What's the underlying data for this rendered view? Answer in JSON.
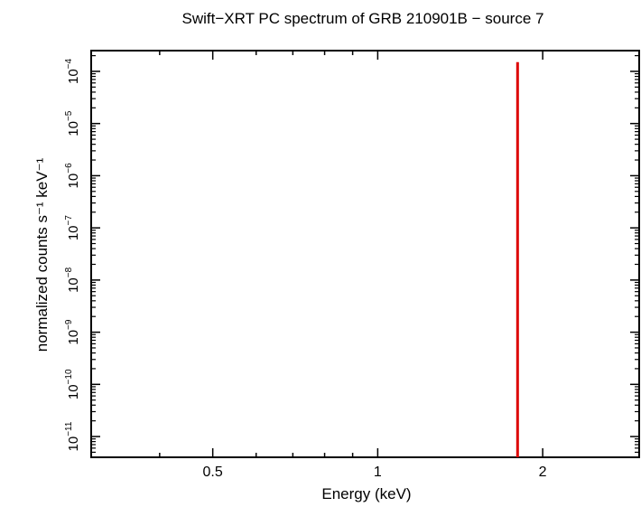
{
  "chart_data": {
    "type": "line",
    "title": "Swift−XRT PC spectrum of GRB 210901B − source 7",
    "xlabel": "Energy (keV)",
    "ylabel": "normalized counts s⁻¹ keV⁻¹",
    "xscale": "log",
    "yscale": "log",
    "xlim": [
      0.3,
      3.0
    ],
    "ylim": [
      4e-12,
      0.00025
    ],
    "x_ticks": [
      {
        "value": 0.5,
        "label": "0.5"
      },
      {
        "value": 1,
        "label": "1"
      },
      {
        "value": 2,
        "label": "2"
      }
    ],
    "y_ticks": [
      {
        "value": 1e-11,
        "base": "10",
        "exp": "−11"
      },
      {
        "value": 1e-10,
        "base": "10",
        "exp": "−10"
      },
      {
        "value": 1e-09,
        "base": "10",
        "exp": "−9"
      },
      {
        "value": 1e-08,
        "base": "10",
        "exp": "−8"
      },
      {
        "value": 1e-07,
        "base": "10",
        "exp": "−7"
      },
      {
        "value": 1e-06,
        "base": "10",
        "exp": "−6"
      },
      {
        "value": 1e-05,
        "base": "10",
        "exp": "−5"
      },
      {
        "value": 0.0001,
        "base": "10",
        "exp": "−4"
      }
    ],
    "series": [
      {
        "color": "#dd0000",
        "x": [
          1.8,
          1.8
        ],
        "y": [
          4e-12,
          0.00015
        ]
      }
    ],
    "grid": false,
    "legend": "none"
  }
}
